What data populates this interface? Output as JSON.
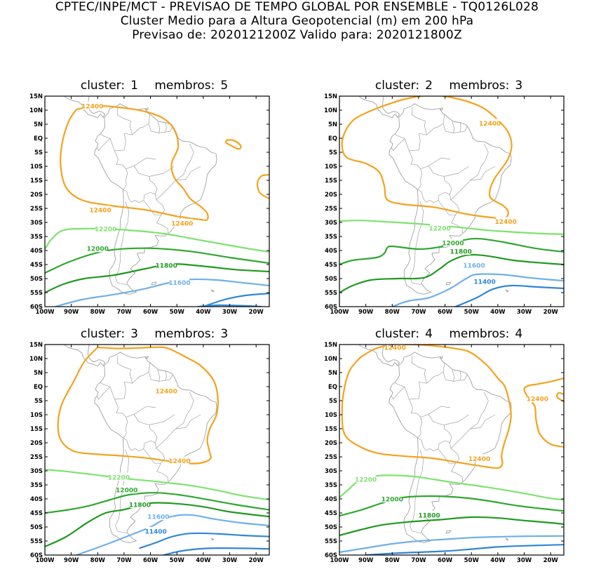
{
  "header": {
    "line1": "CPTEC/INPE/MCT - PREVISAO DE TEMPO GLOBAL POR ENSEMBLE - TQ0126L028",
    "line2": "Cluster Medio para a Altura Geopotencial (m) em 200 hPa",
    "line3": "Previsao de: 2020121200Z    Valido para: 2020121800Z"
  },
  "axes": {
    "lat_ticks": [
      "15N",
      "10N",
      "5N",
      "EQ",
      "5S",
      "10S",
      "15S",
      "20S",
      "25S",
      "30S",
      "35S",
      "40S",
      "45S",
      "50S",
      "55S",
      "60S"
    ],
    "lon_ticks": [
      "100W",
      "90W",
      "80W",
      "70W",
      "60W",
      "50W",
      "40W",
      "30W",
      "20W"
    ]
  },
  "colors": {
    "c12400": "#f5a21e",
    "c12200": "#7de36e",
    "c12000": "#2ea82e",
    "c11800": "#1f9a1f",
    "c11600": "#6fb0e8",
    "c11400": "#2f86d8",
    "coast": "#a0a0a0",
    "frame": "#000000"
  },
  "clusters": [
    {
      "id": "1",
      "members": "5",
      "cluster_label": "cluster:",
      "members_label": "membros:",
      "labels": [
        "12400",
        "12400",
        "12400",
        "12200",
        "12000",
        "11800",
        "11600"
      ]
    },
    {
      "id": "2",
      "members": "3",
      "cluster_label": "cluster:",
      "members_label": "membros:",
      "labels": [
        "12400",
        "12400",
        "12200",
        "12000",
        "11800",
        "11600",
        "11400"
      ]
    },
    {
      "id": "3",
      "members": "3",
      "cluster_label": "cluster:",
      "members_label": "membros:",
      "labels": [
        "12400",
        "12400",
        "12200",
        "12000",
        "11800",
        "11600",
        "11400"
      ]
    },
    {
      "id": "4",
      "members": "4",
      "cluster_label": "cluster:",
      "members_label": "membros:",
      "labels": [
        "12400",
        "12400",
        "12400",
        "12200",
        "12000",
        "11800"
      ]
    }
  ]
}
